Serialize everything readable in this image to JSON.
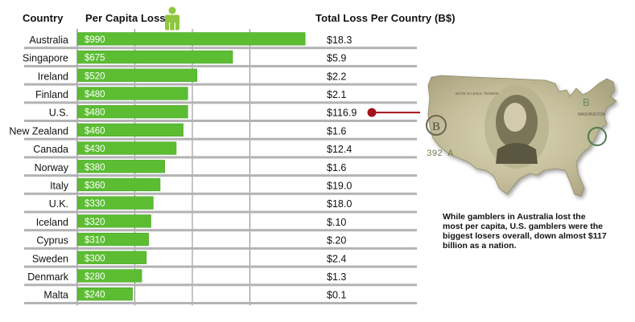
{
  "headers": {
    "country": "Country",
    "per_capita": "Per Capita Loss",
    "total": "Total Loss Per Country (B$)"
  },
  "person_icon": "person-icon",
  "map_image": {
    "icon": "us-dollar-map",
    "plate_text": "B",
    "serial_text": "392 A",
    "legal_text": "NOTE IS LEGAL TENDER",
    "city_text": "WASHINGTON"
  },
  "caption": "While gamblers in Australia lost the most per capita, U.S. gamblers were the biggest losers overall, down almost $117 billion as a nation.",
  "colors": {
    "bar": "#5cbd33",
    "bar_stroke": "#4aa527",
    "separator": "#b3b3b3",
    "grid": "#888888",
    "pointer": "#a3121b",
    "icon": "#8ec63f"
  },
  "chart_data": {
    "type": "table",
    "xlim": [
      0,
      1000
    ],
    "grid_values": [
      250,
      500,
      750
    ],
    "rows": [
      {
        "country": "Australia",
        "per_capita": 990,
        "per_capita_label": "$990",
        "total": "$18.3"
      },
      {
        "country": "Singapore",
        "per_capita": 675,
        "per_capita_label": "$675",
        "total": "$5.9"
      },
      {
        "country": "Ireland",
        "per_capita": 520,
        "per_capita_label": "$520",
        "total": "$2.2"
      },
      {
        "country": "Finland",
        "per_capita": 480,
        "per_capita_label": "$480",
        "total": "$2.1"
      },
      {
        "country": "U.S.",
        "per_capita": 480,
        "per_capita_label": "$480",
        "total": "$116.9",
        "highlight": true
      },
      {
        "country": "New Zealand",
        "per_capita": 460,
        "per_capita_label": "$460",
        "total": "$1.6"
      },
      {
        "country": "Canada",
        "per_capita": 430,
        "per_capita_label": "$430",
        "total": "$12.4"
      },
      {
        "country": "Norway",
        "per_capita": 380,
        "per_capita_label": "$380",
        "total": "$1.6"
      },
      {
        "country": "Italy",
        "per_capita": 360,
        "per_capita_label": "$360",
        "total": "$19.0"
      },
      {
        "country": "U.K.",
        "per_capita": 330,
        "per_capita_label": "$330",
        "total": "$18.0"
      },
      {
        "country": "Iceland",
        "per_capita": 320,
        "per_capita_label": "$320",
        "total": "$.10"
      },
      {
        "country": "Cyprus",
        "per_capita": 310,
        "per_capita_label": "$310",
        "total": "$.20"
      },
      {
        "country": "Sweden",
        "per_capita": 300,
        "per_capita_label": "$300",
        "total": "$2.4"
      },
      {
        "country": "Denmark",
        "per_capita": 280,
        "per_capita_label": "$280",
        "total": "$1.3"
      },
      {
        "country": "Malta",
        "per_capita": 240,
        "per_capita_label": "$240",
        "total": "$0.1"
      }
    ]
  }
}
